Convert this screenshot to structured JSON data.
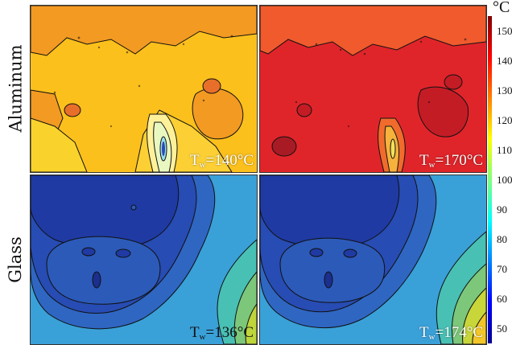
{
  "rows": [
    {
      "label": "Aluminum",
      "panels": [
        {
          "tw_base": "T",
          "tw_sub": "w",
          "tw_value": "=140°C"
        },
        {
          "tw_base": "T",
          "tw_sub": "w",
          "tw_value": "=170°C"
        }
      ]
    },
    {
      "label": "Glass",
      "panels": [
        {
          "tw_base": "T",
          "tw_sub": "w",
          "tw_value": "=136°C"
        },
        {
          "tw_base": "T",
          "tw_sub": "w",
          "tw_value": "=174°C"
        }
      ]
    }
  ],
  "colorbar": {
    "unit": "°C",
    "ticks": [
      "150",
      "140",
      "130",
      "120",
      "110",
      "100",
      "90",
      "80",
      "70",
      "60",
      "50"
    ],
    "range": [
      45,
      155
    ],
    "colormap": [
      "#00008f",
      "#0000ff",
      "#0080ff",
      "#00ffff",
      "#80ff80",
      "#ffff00",
      "#ff8000",
      "#ff0000",
      "#800000"
    ]
  },
  "chart_data": {
    "type": "heatmap",
    "title": "",
    "rows": [
      "Aluminum",
      "Glass"
    ],
    "panels": [
      {
        "material": "Aluminum",
        "Tw_celsius": 140,
        "surface_range_celsius": [
          120,
          128
        ]
      },
      {
        "material": "Aluminum",
        "Tw_celsius": 170,
        "surface_range_celsius": [
          136,
          145
        ]
      },
      {
        "material": "Glass",
        "Tw_celsius": 136,
        "surface_range_celsius": [
          58,
          108
        ]
      },
      {
        "material": "Glass",
        "Tw_celsius": 174,
        "surface_range_celsius": [
          60,
          110
        ]
      }
    ],
    "colorbar_unit": "°C",
    "colorbar_ticks": [
      150,
      140,
      130,
      120,
      110,
      100,
      90,
      80,
      70,
      60,
      50
    ],
    "grid": false
  }
}
